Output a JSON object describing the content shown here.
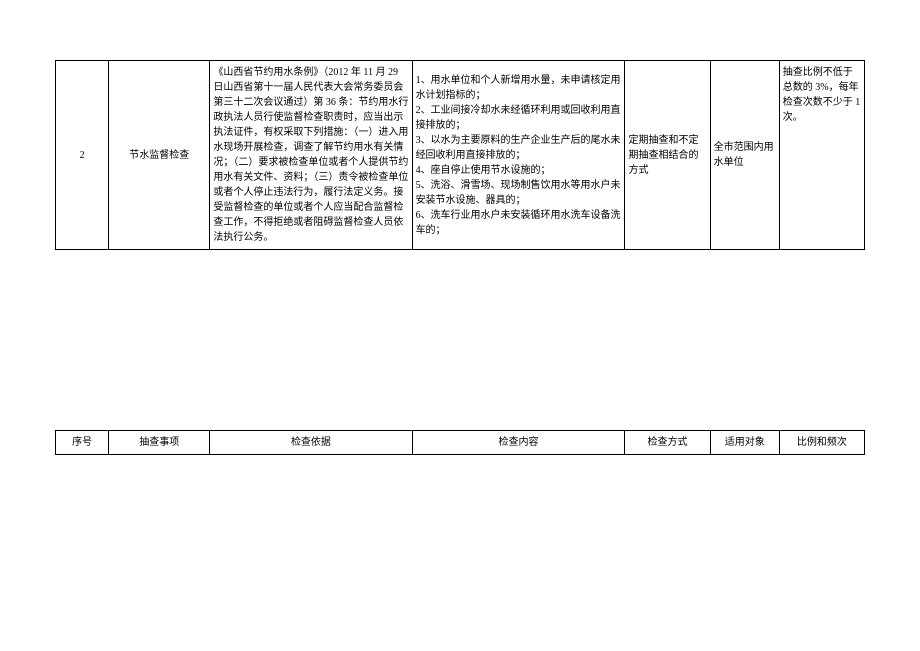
{
  "mainRow": {
    "num": "2",
    "item": "节水监督检查",
    "basis": "《山西省节约用水条例》（2012 年 11 月 29 日山西省第十一届人民代表大会常务委员会第三十二次会议通过）第 36 条：节约用水行政执法人员行使监督检查职责时，应当出示执法证件，有权采取下列措施：（一）进入用水现场开展检查，调查了解节约用水有关情况；（二）要求被检查单位或者个人提供节约用水有关文件、资料；（三）责令被检查单位或者个人停止违法行为，履行法定义务。接受监督检查的单位或者个人应当配合监督检查工作，不得拒绝或者阻碍监督检查人员依法执行公务。",
    "content": "1、用水单位和个人新增用水量，未申请核定用水计划指标的；\n2、工业间接冷却水未经循环利用或回收利用直接排放的；\n3、以水为主要原料的生产企业生产后的尾水未经回收利用直接排放的；\n4、座自停止使用节水设施的；\n5、洗浴、滑雪场、现场制售饮用水等用水户未安装节水设施、器具的；\n6、洗车行业用水户未安装循环用水洗车设备洗车的；",
    "method": "定期抽查和不定期抽查相结合的方式",
    "target": "全市范围内用水单位",
    "freq": "抽查比例不低于总数的 3%，每年检查次数不少于 1 次。"
  },
  "headerRow": {
    "num": "序号",
    "item": "抽查事项",
    "basis": "检查依据",
    "content": "检查内容",
    "method": "检查方式",
    "target": "适用对象",
    "freq": "比例和频次"
  }
}
